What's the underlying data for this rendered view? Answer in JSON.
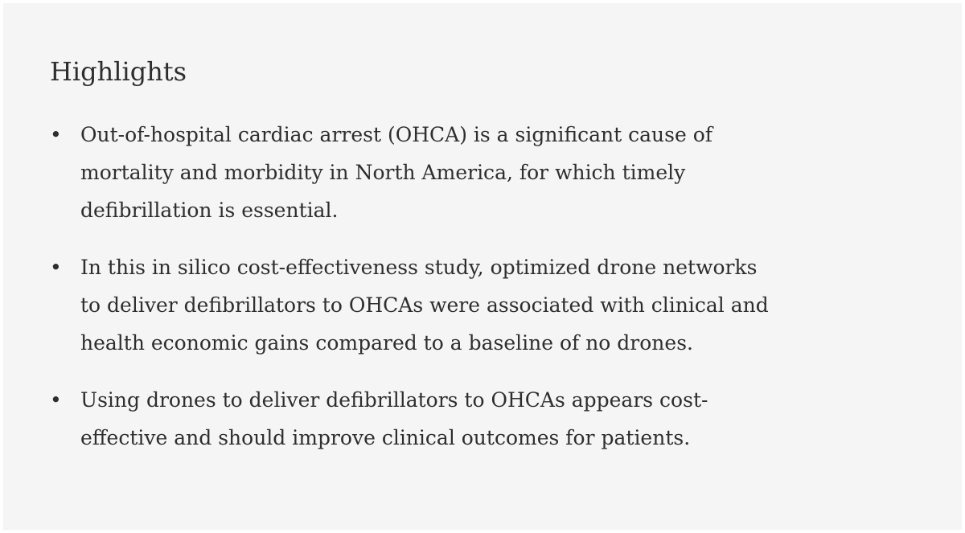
{
  "section": {
    "title": "Highlights",
    "bullet_glyph": "•",
    "items": [
      {
        "lines": [
          "Out-of-hospital cardiac arrest (OHCA) is a significant cause of",
          "mortality and morbidity in North America, for which timely",
          "defibrillation is essential."
        ]
      },
      {
        "lines": [
          "In this in silico cost-effectiveness study, optimized drone networks",
          "to deliver defibrillators to OHCAs were associated with clinical and",
          "health economic gains compared to a baseline of no drones."
        ]
      },
      {
        "lines": [
          "Using drones to deliver defibrillators to OHCAs appears cost-",
          "effective and should improve clinical outcomes for patients."
        ]
      }
    ]
  }
}
